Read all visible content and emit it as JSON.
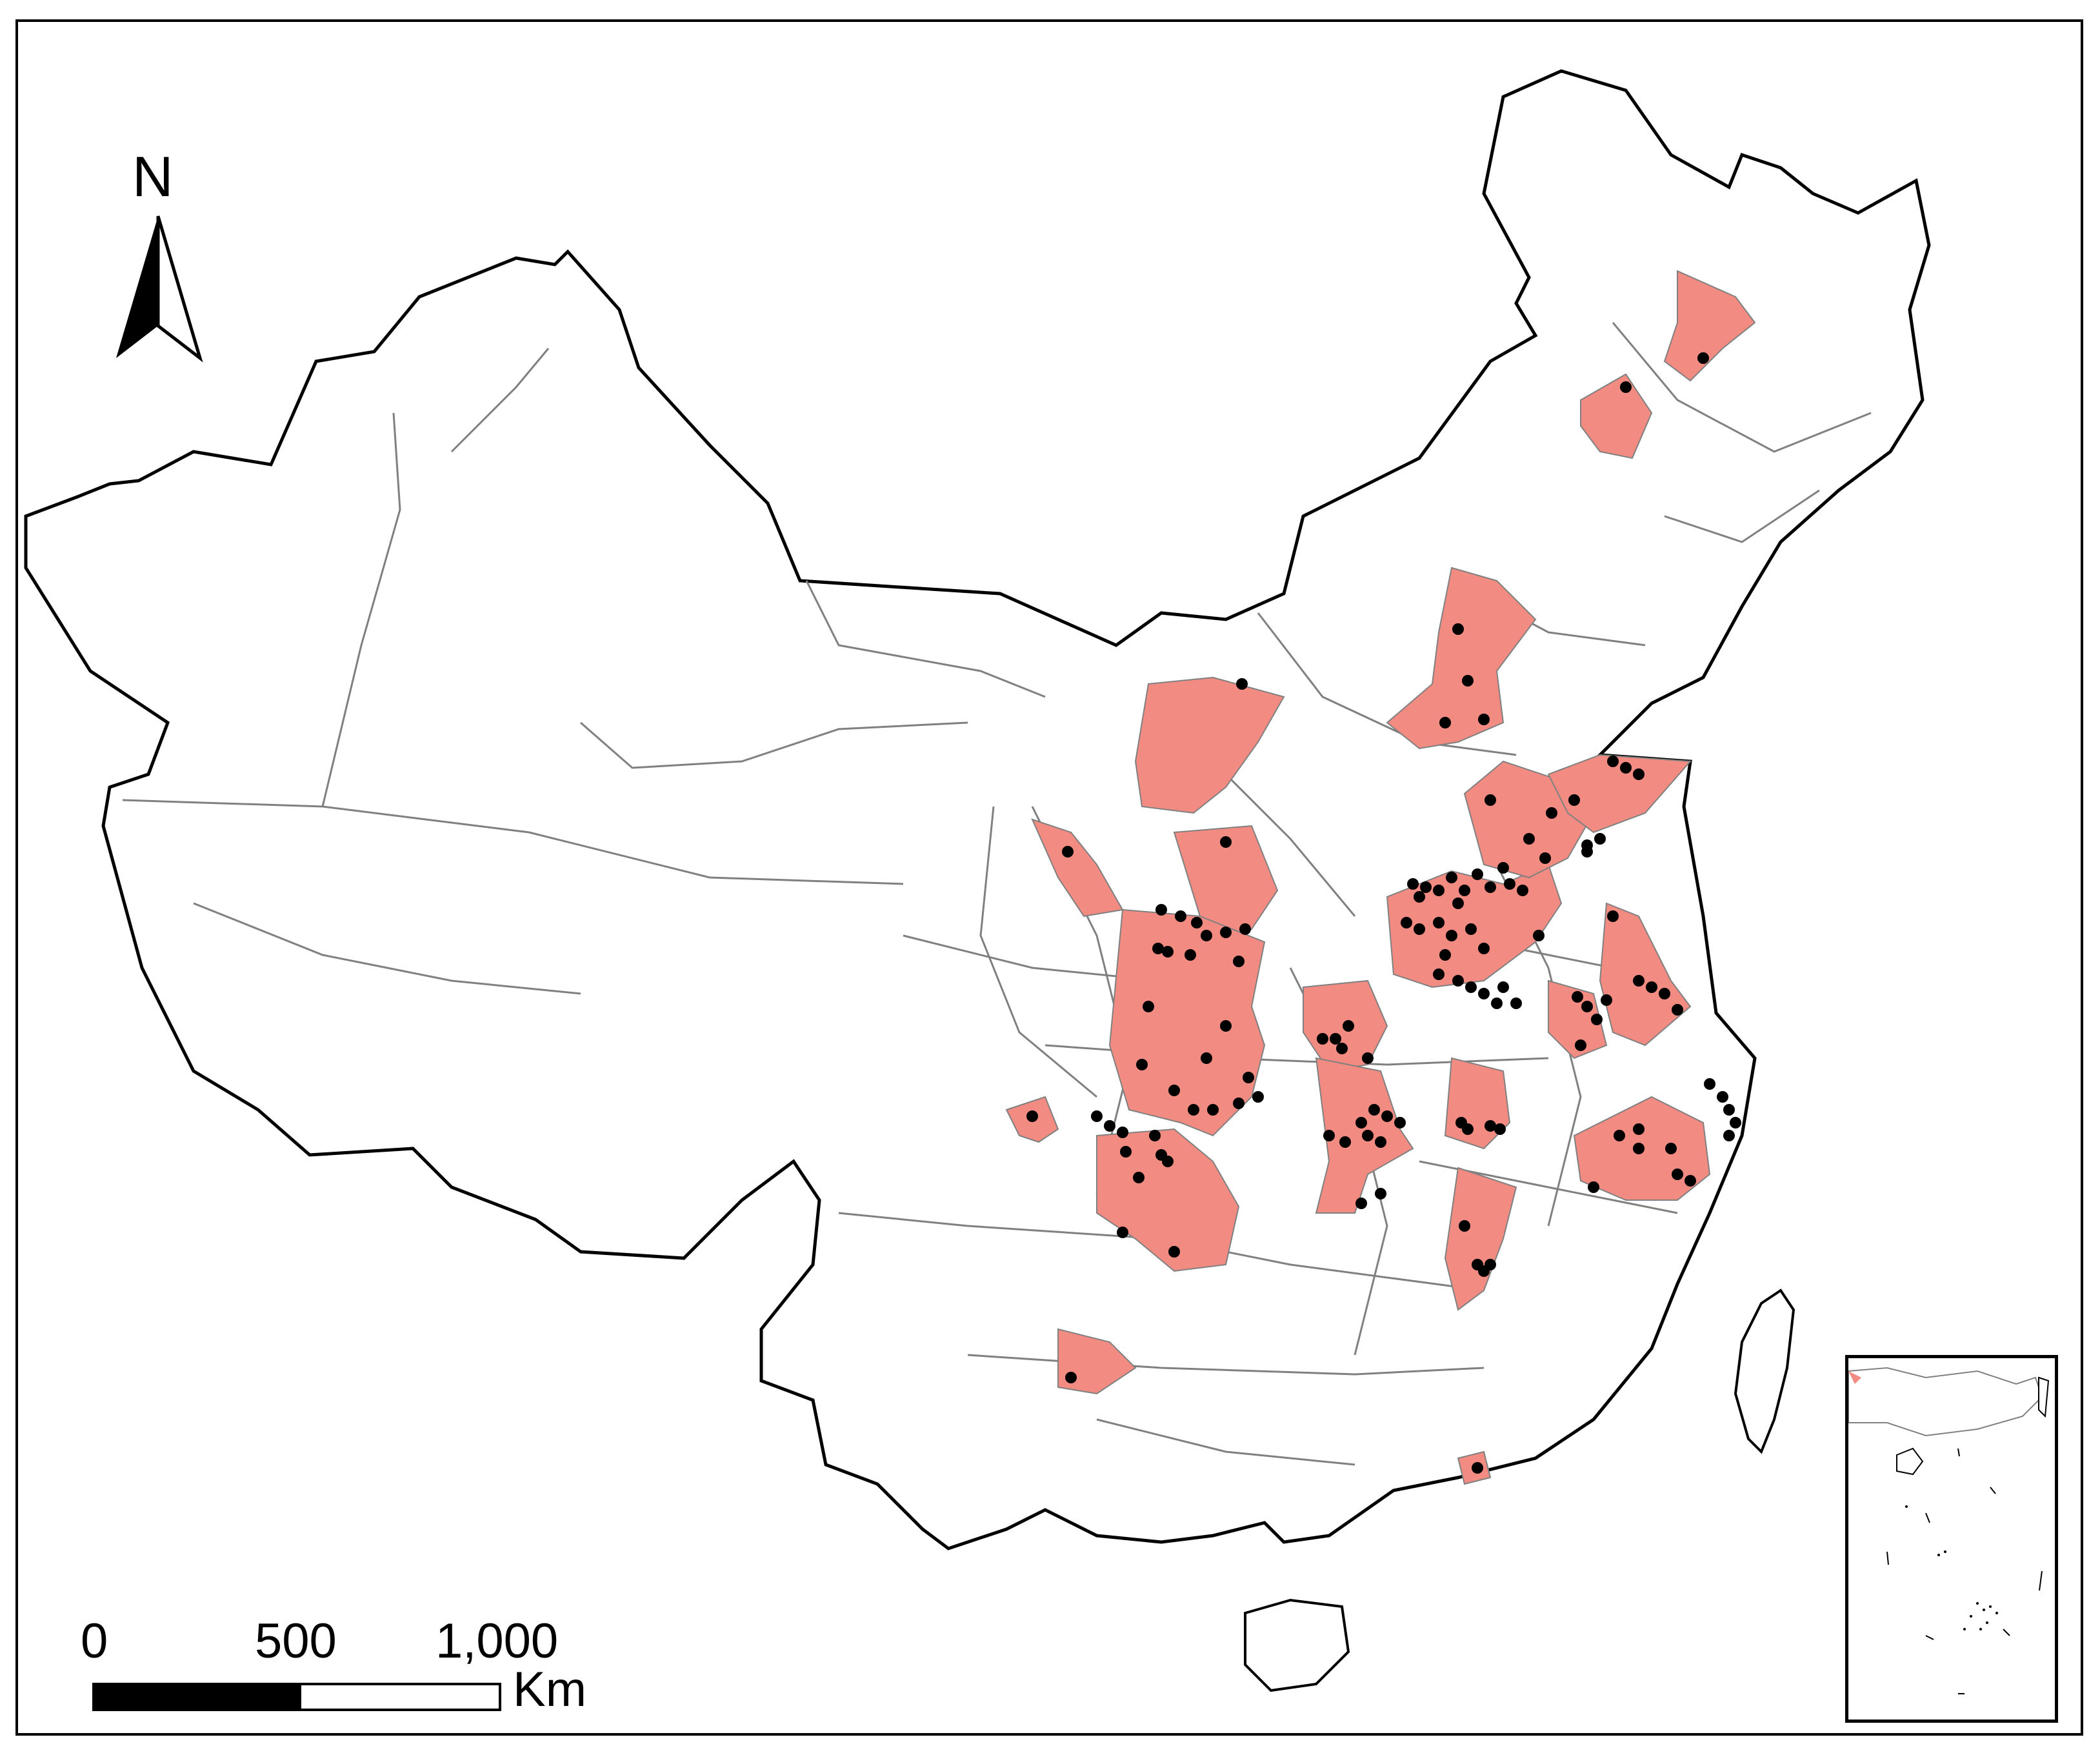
{
  "north_arrow": {
    "letter": "N",
    "icon": "north-arrow-icon"
  },
  "scale_bar": {
    "ticks": [
      "0",
      "500",
      "1,000"
    ],
    "unit": "Km"
  },
  "colors": {
    "highlight_fill": "#f28b82",
    "boundary": "#808080",
    "outline": "#000000",
    "point": "#000000"
  },
  "map": {
    "highlighted_region_count": 19,
    "sample_point_count": 160
  }
}
